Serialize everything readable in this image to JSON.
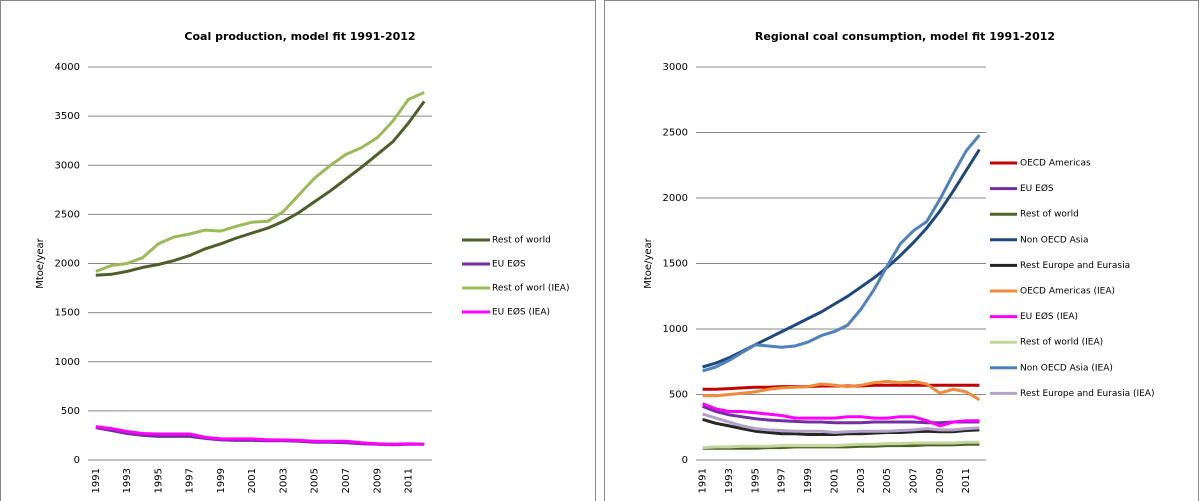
{
  "chart_data": [
    {
      "type": "line",
      "title": "Coal production, model fit 1991-2012",
      "y_label": "Mtoe/year",
      "categories": [
        "1991",
        null,
        "1993",
        null,
        "1995",
        null,
        "1997",
        null,
        "1999",
        null,
        "2001",
        null,
        "2003",
        null,
        "2005",
        null,
        "2007",
        null,
        "2009",
        null,
        "2011",
        null
      ],
      "ylim": [
        0,
        4000
      ],
      "yticks": [
        0,
        500,
        1000,
        1500,
        2000,
        2500,
        3000,
        3500,
        4000
      ],
      "series": [
        {
          "name": "Rest of world",
          "color": "#4f5f2a",
          "values": [
            1880,
            1890,
            1920,
            1960,
            1990,
            2030,
            2080,
            2150,
            2200,
            2260,
            2310,
            2360,
            2430,
            2520,
            2630,
            2740,
            2860,
            2980,
            3110,
            3240,
            3430,
            3650
          ]
        },
        {
          "name": "EU EØS",
          "color": "#7030a0",
          "values": [
            330,
            300,
            270,
            250,
            240,
            240,
            240,
            220,
            205,
            200,
            200,
            195,
            195,
            190,
            180,
            180,
            175,
            165,
            160,
            155,
            160,
            160
          ]
        },
        {
          "name": "Rest of worl (IEA)",
          "color": "#9bbb59",
          "values": [
            1920,
            1980,
            2000,
            2060,
            2200,
            2270,
            2300,
            2340,
            2330,
            2380,
            2420,
            2430,
            2530,
            2700,
            2870,
            3000,
            3110,
            3180,
            3280,
            3450,
            3670,
            3740
          ]
        },
        {
          "name": "EU EØS (IEA)",
          "color": "#ff00ff",
          "values": [
            340,
            320,
            290,
            270,
            265,
            265,
            265,
            230,
            215,
            215,
            215,
            205,
            205,
            200,
            190,
            190,
            190,
            175,
            165,
            160,
            165,
            160
          ]
        }
      ]
    },
    {
      "type": "line",
      "title": "Regional coal consumption, model fit 1991-2012",
      "y_label": "Mtoe/year",
      "categories": [
        "1991",
        null,
        "1993",
        null,
        "1995",
        null,
        "1997",
        null,
        "1999",
        null,
        "2001",
        null,
        "2003",
        null,
        "2005",
        null,
        "2007",
        null,
        "2009",
        null,
        "2011",
        null
      ],
      "ylim": [
        0,
        3000
      ],
      "yticks": [
        0,
        500,
        1000,
        1500,
        2000,
        2500,
        3000
      ],
      "series": [
        {
          "name": "OECD Americas",
          "color": "#c00000",
          "values": [
            540,
            540,
            545,
            550,
            555,
            555,
            560,
            560,
            560,
            565,
            565,
            565,
            565,
            570,
            570,
            570,
            570,
            570,
            570,
            570,
            570,
            570
          ]
        },
        {
          "name": "EU EØS",
          "color": "#7030a0",
          "values": [
            410,
            370,
            345,
            330,
            315,
            305,
            300,
            295,
            290,
            290,
            285,
            285,
            285,
            290,
            290,
            290,
            290,
            285,
            285,
            290,
            290,
            290
          ]
        },
        {
          "name": "Rest of world",
          "color": "#4f6228",
          "values": [
            90,
            90,
            90,
            90,
            90,
            95,
            95,
            100,
            100,
            100,
            100,
            100,
            105,
            105,
            110,
            110,
            110,
            115,
            115,
            115,
            120,
            120
          ]
        },
        {
          "name": "Non OECD Asia",
          "color": "#1f497d",
          "values": [
            710,
            740,
            780,
            830,
            880,
            930,
            980,
            1030,
            1080,
            1130,
            1190,
            1250,
            1320,
            1390,
            1470,
            1560,
            1660,
            1770,
            1900,
            2050,
            2210,
            2370
          ]
        },
        {
          "name": "Rest Europe and Eurasia",
          "color": "#262626",
          "values": [
            310,
            280,
            260,
            240,
            220,
            210,
            200,
            200,
            195,
            195,
            195,
            200,
            200,
            205,
            210,
            210,
            215,
            220,
            215,
            215,
            225,
            230
          ]
        },
        {
          "name": "OECD Americas (IEA)",
          "color": "#f08a3c",
          "values": [
            490,
            490,
            500,
            510,
            520,
            540,
            550,
            555,
            560,
            580,
            570,
            560,
            570,
            590,
            600,
            590,
            600,
            580,
            510,
            540,
            520,
            460
          ]
        },
        {
          "name": "EU EØS (IEA)",
          "color": "#ff00ff",
          "values": [
            430,
            390,
            370,
            370,
            360,
            350,
            340,
            320,
            320,
            320,
            320,
            330,
            330,
            320,
            320,
            330,
            330,
            300,
            260,
            290,
            300,
            300
          ]
        },
        {
          "name": "Rest of world (IEA)",
          "color": "#c3d69b",
          "values": [
            95,
            100,
            100,
            105,
            105,
            105,
            110,
            110,
            110,
            110,
            110,
            115,
            120,
            120,
            125,
            125,
            130,
            130,
            130,
            130,
            135,
            135
          ]
        },
        {
          "name": "Non OECD Asia (IEA)",
          "color": "#4f81bd",
          "values": [
            680,
            710,
            760,
            820,
            880,
            870,
            860,
            870,
            900,
            950,
            980,
            1030,
            1150,
            1300,
            1480,
            1650,
            1750,
            1820,
            1990,
            2180,
            2360,
            2480
          ]
        },
        {
          "name": "Rest Europe and Eurasia (IEA)",
          "color": "#b3a2c7",
          "values": [
            350,
            320,
            290,
            260,
            240,
            230,
            225,
            220,
            220,
            220,
            210,
            215,
            220,
            220,
            220,
            225,
            230,
            240,
            230,
            230,
            240,
            245
          ]
        }
      ]
    }
  ]
}
